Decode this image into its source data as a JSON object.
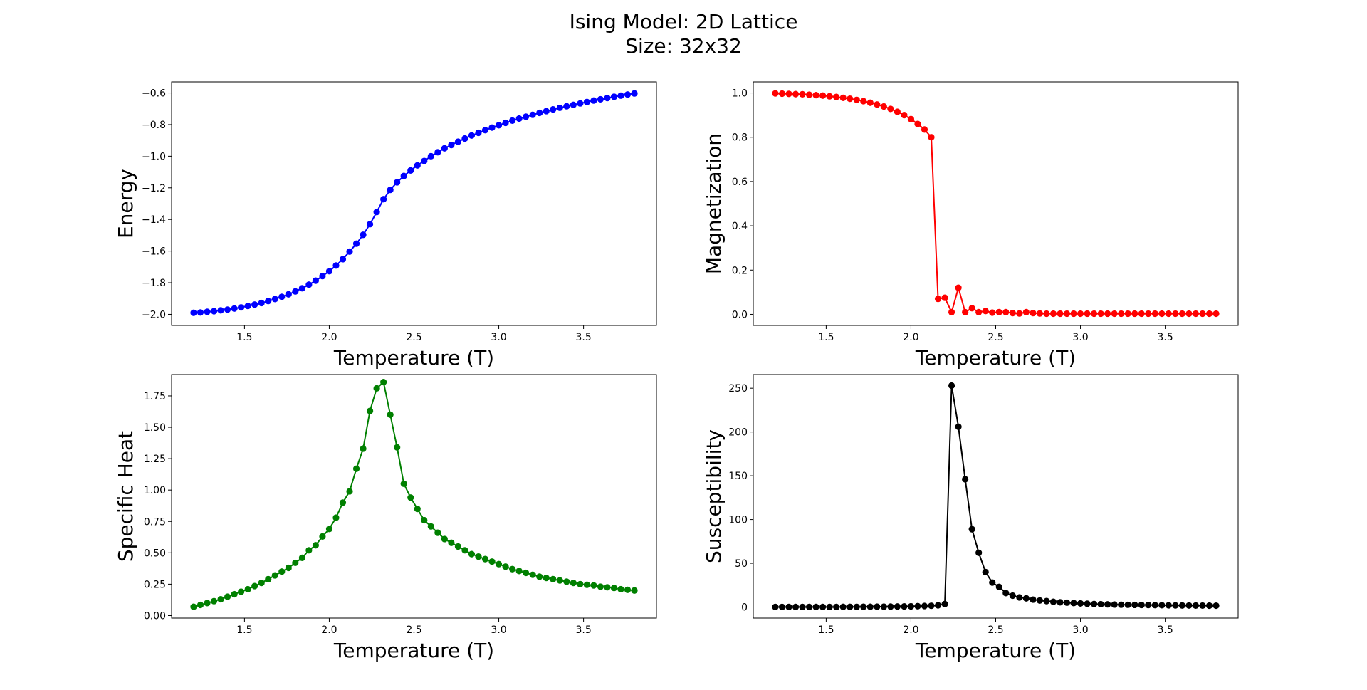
{
  "figure": {
    "title_line1": "Ising Model: 2D Lattice",
    "title_line2": "Size: 32x32"
  },
  "chart_data": [
    {
      "type": "line",
      "name": "energy",
      "xlabel": "Temperature (T)",
      "ylabel": "Energy",
      "color": "#0000ff",
      "xlim": [
        1.07,
        3.93
      ],
      "ylim": [
        -2.07,
        -0.53
      ],
      "xticks": [
        1.5,
        2.0,
        2.5,
        3.0,
        3.5
      ],
      "xtick_labels": [
        "1.5",
        "2.0",
        "2.5",
        "3.0",
        "3.5"
      ],
      "yticks": [
        -2.0,
        -1.8,
        -1.6,
        -1.4,
        -1.2,
        -1.0,
        -0.8,
        -0.6
      ],
      "ytick_labels": [
        "−2.0",
        "−1.8",
        "−1.6",
        "−1.4",
        "−1.2",
        "−1.0",
        "−0.8",
        "−0.6"
      ],
      "x": [
        1.2,
        1.24,
        1.28,
        1.32,
        1.36,
        1.4,
        1.44,
        1.48,
        1.52,
        1.56,
        1.6,
        1.64,
        1.68,
        1.72,
        1.76,
        1.8,
        1.84,
        1.88,
        1.92,
        1.96,
        2.0,
        2.04,
        2.08,
        2.12,
        2.16,
        2.2,
        2.24,
        2.28,
        2.32,
        2.36,
        2.4,
        2.44,
        2.48,
        2.52,
        2.56,
        2.6,
        2.64,
        2.68,
        2.72,
        2.76,
        2.8,
        2.84,
        2.88,
        2.92,
        2.96,
        3.0,
        3.04,
        3.08,
        3.12,
        3.16,
        3.2,
        3.24,
        3.28,
        3.32,
        3.36,
        3.4,
        3.44,
        3.48,
        3.52,
        3.56,
        3.6,
        3.64,
        3.68,
        3.72,
        3.76,
        3.8
      ],
      "y": [
        -1.99,
        -1.988,
        -1.984,
        -1.98,
        -1.975,
        -1.97,
        -1.963,
        -1.956,
        -1.947,
        -1.938,
        -1.928,
        -1.916,
        -1.903,
        -1.889,
        -1.873,
        -1.855,
        -1.835,
        -1.812,
        -1.787,
        -1.758,
        -1.727,
        -1.691,
        -1.651,
        -1.603,
        -1.553,
        -1.497,
        -1.43,
        -1.353,
        -1.272,
        -1.213,
        -1.165,
        -1.125,
        -1.09,
        -1.058,
        -1.03,
        -1.0,
        -0.975,
        -0.95,
        -0.929,
        -0.908,
        -0.888,
        -0.869,
        -0.852,
        -0.835,
        -0.819,
        -0.804,
        -0.789,
        -0.775,
        -0.762,
        -0.75,
        -0.738,
        -0.726,
        -0.715,
        -0.704,
        -0.694,
        -0.684,
        -0.675,
        -0.666,
        -0.657,
        -0.648,
        -0.64,
        -0.632,
        -0.624,
        -0.617,
        -0.61,
        -0.603
      ]
    },
    {
      "type": "line",
      "name": "magnetization",
      "xlabel": "Temperature (T)",
      "ylabel": "Magnetization",
      "color": "#ff0000",
      "xlim": [
        1.07,
        3.93
      ],
      "ylim": [
        -0.05,
        1.05
      ],
      "xticks": [
        1.5,
        2.0,
        2.5,
        3.0,
        3.5
      ],
      "xtick_labels": [
        "1.5",
        "2.0",
        "2.5",
        "3.0",
        "3.5"
      ],
      "yticks": [
        0.0,
        0.2,
        0.4,
        0.6,
        0.8,
        1.0
      ],
      "ytick_labels": [
        "0.0",
        "0.2",
        "0.4",
        "0.6",
        "0.8",
        "1.0"
      ],
      "x": [
        1.2,
        1.24,
        1.28,
        1.32,
        1.36,
        1.4,
        1.44,
        1.48,
        1.52,
        1.56,
        1.6,
        1.64,
        1.68,
        1.72,
        1.76,
        1.8,
        1.84,
        1.88,
        1.92,
        1.96,
        2.0,
        2.04,
        2.08,
        2.12,
        2.16,
        2.2,
        2.24,
        2.28,
        2.32,
        2.36,
        2.4,
        2.44,
        2.48,
        2.52,
        2.56,
        2.6,
        2.64,
        2.68,
        2.72,
        2.76,
        2.8,
        2.84,
        2.88,
        2.92,
        2.96,
        3.0,
        3.04,
        3.08,
        3.12,
        3.16,
        3.2,
        3.24,
        3.28,
        3.32,
        3.36,
        3.4,
        3.44,
        3.48,
        3.52,
        3.56,
        3.6,
        3.64,
        3.68,
        3.72,
        3.76,
        3.8
      ],
      "y": [
        0.998,
        0.997,
        0.996,
        0.995,
        0.994,
        0.992,
        0.99,
        0.988,
        0.985,
        0.982,
        0.978,
        0.974,
        0.969,
        0.963,
        0.956,
        0.948,
        0.939,
        0.928,
        0.915,
        0.9,
        0.882,
        0.86,
        0.835,
        0.8,
        0.07,
        0.075,
        0.01,
        0.12,
        0.01,
        0.028,
        0.01,
        0.015,
        0.008,
        0.01,
        0.01,
        0.006,
        0.004,
        0.01,
        0.006,
        0.004,
        0.003,
        0.003,
        0.003,
        0.003,
        0.003,
        0.003,
        0.003,
        0.003,
        0.003,
        0.003,
        0.003,
        0.003,
        0.003,
        0.003,
        0.003,
        0.003,
        0.003,
        0.003,
        0.003,
        0.003,
        0.003,
        0.003,
        0.003,
        0.003,
        0.003,
        0.003
      ]
    },
    {
      "type": "line",
      "name": "specific-heat",
      "xlabel": "Temperature (T)",
      "ylabel": "Specific Heat",
      "color": "#008000",
      "xlim": [
        1.07,
        3.93
      ],
      "ylim": [
        -0.02,
        1.92
      ],
      "xticks": [
        1.5,
        2.0,
        2.5,
        3.0,
        3.5
      ],
      "xtick_labels": [
        "1.5",
        "2.0",
        "2.5",
        "3.0",
        "3.5"
      ],
      "yticks": [
        0.0,
        0.25,
        0.5,
        0.75,
        1.0,
        1.25,
        1.5,
        1.75
      ],
      "ytick_labels": [
        "0.00",
        "0.25",
        "0.50",
        "0.75",
        "1.00",
        "1.25",
        "1.50",
        "1.75"
      ],
      "x": [
        1.2,
        1.24,
        1.28,
        1.32,
        1.36,
        1.4,
        1.44,
        1.48,
        1.52,
        1.56,
        1.6,
        1.64,
        1.68,
        1.72,
        1.76,
        1.8,
        1.84,
        1.88,
        1.92,
        1.96,
        2.0,
        2.04,
        2.08,
        2.12,
        2.16,
        2.2,
        2.24,
        2.28,
        2.32,
        2.36,
        2.4,
        2.44,
        2.48,
        2.52,
        2.56,
        2.6,
        2.64,
        2.68,
        2.72,
        2.76,
        2.8,
        2.84,
        2.88,
        2.92,
        2.96,
        3.0,
        3.04,
        3.08,
        3.12,
        3.16,
        3.2,
        3.24,
        3.28,
        3.32,
        3.36,
        3.4,
        3.44,
        3.48,
        3.52,
        3.56,
        3.6,
        3.64,
        3.68,
        3.72,
        3.76,
        3.8
      ],
      "y": [
        0.07,
        0.085,
        0.1,
        0.115,
        0.13,
        0.15,
        0.17,
        0.19,
        0.21,
        0.235,
        0.26,
        0.29,
        0.32,
        0.35,
        0.38,
        0.42,
        0.46,
        0.52,
        0.56,
        0.63,
        0.69,
        0.78,
        0.9,
        0.99,
        1.17,
        1.33,
        1.63,
        1.81,
        1.86,
        1.6,
        1.34,
        1.05,
        0.94,
        0.85,
        0.76,
        0.71,
        0.66,
        0.61,
        0.58,
        0.55,
        0.52,
        0.49,
        0.47,
        0.45,
        0.43,
        0.41,
        0.39,
        0.37,
        0.355,
        0.34,
        0.325,
        0.31,
        0.3,
        0.29,
        0.28,
        0.27,
        0.26,
        0.25,
        0.245,
        0.24,
        0.23,
        0.225,
        0.22,
        0.21,
        0.205,
        0.2
      ]
    },
    {
      "type": "line",
      "name": "susceptibility",
      "xlabel": "Temperature (T)",
      "ylabel": "Susceptibility",
      "color": "#000000",
      "xlim": [
        1.07,
        3.93
      ],
      "ylim": [
        -12.6,
        265.6
      ],
      "xticks": [
        1.5,
        2.0,
        2.5,
        3.0,
        3.5
      ],
      "xtick_labels": [
        "1.5",
        "2.0",
        "2.5",
        "3.0",
        "3.5"
      ],
      "yticks": [
        0,
        50,
        100,
        150,
        200,
        250
      ],
      "ytick_labels": [
        "0",
        "50",
        "100",
        "150",
        "200",
        "250"
      ],
      "x": [
        1.2,
        1.24,
        1.28,
        1.32,
        1.36,
        1.4,
        1.44,
        1.48,
        1.52,
        1.56,
        1.6,
        1.64,
        1.68,
        1.72,
        1.76,
        1.8,
        1.84,
        1.88,
        1.92,
        1.96,
        2.0,
        2.04,
        2.08,
        2.12,
        2.16,
        2.2,
        2.24,
        2.28,
        2.32,
        2.36,
        2.4,
        2.44,
        2.48,
        2.52,
        2.56,
        2.6,
        2.64,
        2.68,
        2.72,
        2.76,
        2.8,
        2.84,
        2.88,
        2.92,
        2.96,
        3.0,
        3.04,
        3.08,
        3.12,
        3.16,
        3.2,
        3.24,
        3.28,
        3.32,
        3.36,
        3.4,
        3.44,
        3.48,
        3.52,
        3.56,
        3.6,
        3.64,
        3.68,
        3.72,
        3.76,
        3.8
      ],
      "y": [
        0.1,
        0.1,
        0.1,
        0.1,
        0.1,
        0.1,
        0.1,
        0.1,
        0.1,
        0.1,
        0.2,
        0.2,
        0.2,
        0.3,
        0.3,
        0.4,
        0.4,
        0.5,
        0.6,
        0.7,
        0.8,
        1.0,
        1.2,
        1.5,
        2.0,
        3.5,
        253,
        206,
        146,
        89,
        62,
        40,
        28,
        23,
        16,
        13,
        11,
        10,
        8.5,
        7.5,
        6.8,
        6.0,
        5.4,
        5.0,
        4.6,
        4.2,
        3.8,
        3.5,
        3.3,
        3.1,
        2.9,
        2.7,
        2.6,
        2.5,
        2.4,
        2.3,
        2.2,
        2.1,
        2.0,
        1.9,
        1.85,
        1.8,
        1.75,
        1.7,
        1.65,
        1.6
      ]
    }
  ]
}
